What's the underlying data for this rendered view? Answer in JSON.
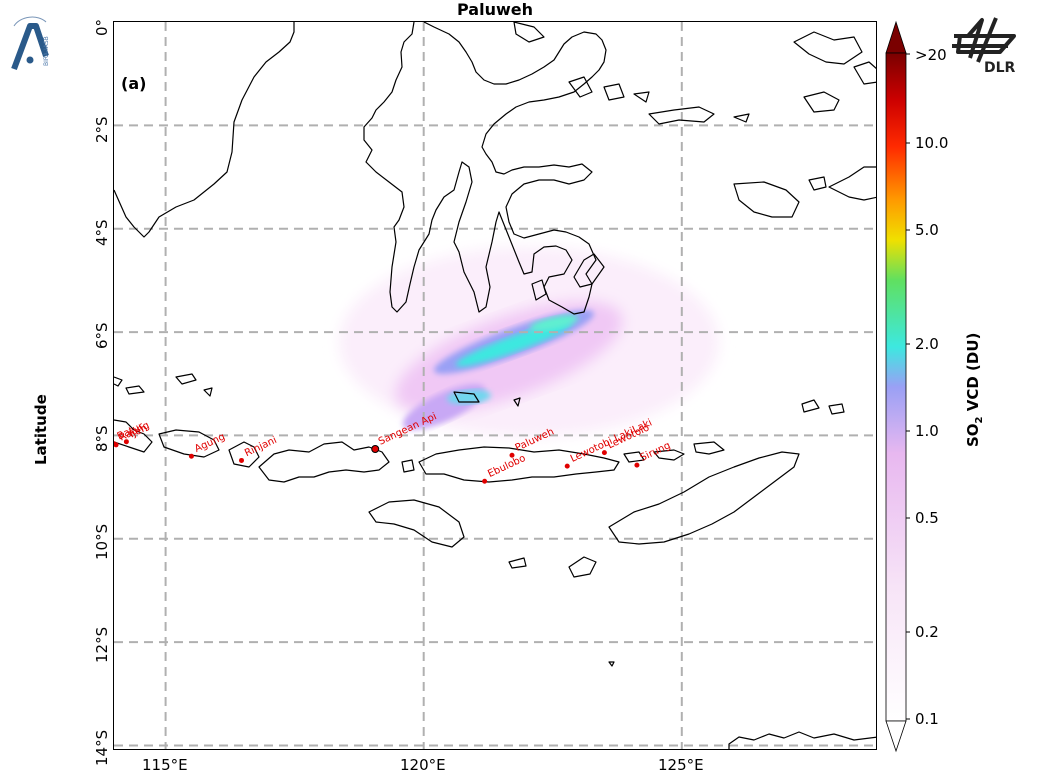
{
  "title": "Paluweh",
  "panel_label": "(a)",
  "y_axis_label": "Latitude",
  "lat_ticks": [
    "0°",
    "2°S",
    "4°S",
    "6°S",
    "8°S",
    "10°S",
    "12°S",
    "14°S"
  ],
  "lon_ticks": [
    "115°E",
    "120°E",
    "125°E"
  ],
  "colorbar": {
    "label_main": "SO",
    "label_sub": "2",
    "label_rest": " VCD (DU)",
    "ticks": [
      ">20",
      "10.0",
      "5.0",
      "2.0",
      "1.0",
      "0.5",
      "0.2",
      "0.1"
    ],
    "colors": [
      "#ffffff",
      "#f7e4f7",
      "#e8b8f0",
      "#9aa0f5",
      "#3de8e0",
      "#60e060",
      "#f0e000",
      "#ff9a00",
      "#ff2a00",
      "#cc0000",
      "#7a0000"
    ]
  },
  "volcanoes": [
    {
      "name": "Batur",
      "lon": 114.0,
      "lat": -8.1
    },
    {
      "name": "Raung",
      "lon": 114.04,
      "lat": -8.12
    },
    {
      "name": "Ijen",
      "lon": 114.24,
      "lat": -8.06
    },
    {
      "name": "Agung",
      "lon": 115.5,
      "lat": -8.34
    },
    {
      "name": "Rinjani",
      "lon": 116.47,
      "lat": -8.42
    },
    {
      "name": "Sangean Api",
      "lon": 119.06,
      "lat": -8.2
    },
    {
      "name": "Ebulobo",
      "lon": 121.18,
      "lat": -8.82
    },
    {
      "name": "Paluweh",
      "lon": 121.71,
      "lat": -8.32
    },
    {
      "name": "Lewotobi LakiLaki",
      "lon": 122.78,
      "lat": -8.53
    },
    {
      "name": "Lewotolo",
      "lon": 123.5,
      "lat": -8.27
    },
    {
      "name": "Sirung",
      "lon": 124.13,
      "lat": -8.51
    }
  ],
  "map_extent": {
    "lon": [
      114.0,
      128.8
    ],
    "lat": [
      -14.0,
      0.0
    ]
  },
  "logos": {
    "left": "BIRA-IASB",
    "right": "DLR"
  }
}
